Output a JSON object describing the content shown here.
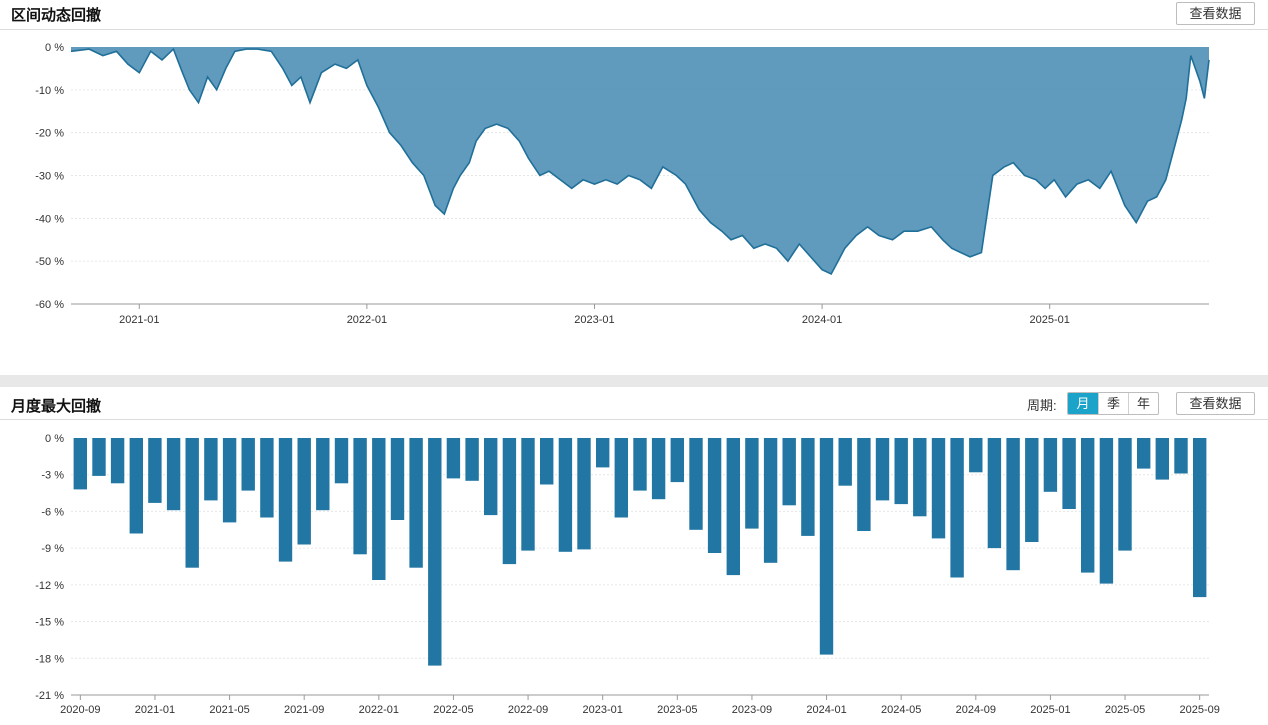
{
  "panel1": {
    "title": "区间动态回撤",
    "view_data_label": "查看数据"
  },
  "panel2": {
    "title": "月度最大回撤",
    "period_label": "周期:",
    "period_options": [
      "月",
      "季",
      "年"
    ],
    "active_period": "月",
    "view_data_label": "查看数据"
  },
  "colors": {
    "area_fill": "#4f90b6",
    "area_line": "#1f6f99",
    "bar": "#2176a3"
  },
  "chart_data": [
    {
      "type": "area",
      "title": "区间动态回撤",
      "ylim": [
        -60,
        0
      ],
      "y_ticks": [
        0,
        -10,
        -20,
        -30,
        -40,
        -50,
        -60
      ],
      "y_tick_labels": [
        "0 %",
        "-10 %",
        "-20 %",
        "-30 %",
        "-40 %",
        "-50 %",
        "-60 %"
      ],
      "x_tick_labels": [
        "2021-01",
        "2022-01",
        "2023-01",
        "2024-01",
        "2025-01"
      ],
      "x_tick_times": [
        2021.0,
        2022.0,
        2023.0,
        2024.0,
        2025.0
      ],
      "xlim": [
        2020.7,
        2025.7
      ],
      "series": [
        {
          "name": "回撤",
          "t": [
            2020.7,
            2020.78,
            2020.84,
            2020.9,
            2020.95,
            2021.0,
            2021.05,
            2021.1,
            2021.15,
            2021.19,
            2021.22,
            2021.26,
            2021.3,
            2021.34,
            2021.38,
            2021.42,
            2021.47,
            2021.52,
            2021.58,
            2021.63,
            2021.67,
            2021.71,
            2021.75,
            2021.8,
            2021.86,
            2021.91,
            2021.96,
            2022.0,
            2022.05,
            2022.1,
            2022.15,
            2022.2,
            2022.25,
            2022.3,
            2022.34,
            2022.38,
            2022.41,
            2022.45,
            2022.48,
            2022.52,
            2022.57,
            2022.62,
            2022.67,
            2022.71,
            2022.76,
            2022.8,
            2022.85,
            2022.9,
            2022.95,
            2023.0,
            2023.05,
            2023.1,
            2023.15,
            2023.2,
            2023.25,
            2023.3,
            2023.36,
            2023.4,
            2023.46,
            2023.51,
            2023.56,
            2023.6,
            2023.65,
            2023.7,
            2023.75,
            2023.8,
            2023.85,
            2023.9,
            2023.95,
            2024.0,
            2024.04,
            2024.07,
            2024.1,
            2024.15,
            2024.2,
            2024.25,
            2024.31,
            2024.36,
            2024.42,
            2024.48,
            2024.53,
            2024.57,
            2024.61,
            2024.65,
            2024.7,
            2024.75,
            2024.8,
            2024.84,
            2024.89,
            2024.94,
            2024.98,
            2025.02,
            2025.07,
            2025.12,
            2025.17,
            2025.22,
            2025.27,
            2025.33,
            2025.38,
            2025.43,
            2025.47,
            2025.51,
            2025.55,
            2025.58,
            2025.6,
            2025.62,
            2025.64,
            2025.66,
            2025.68,
            2025.7
          ],
          "values": [
            -1,
            -0.5,
            -2,
            -1,
            -4,
            -6,
            -1,
            -3,
            -0.5,
            -6,
            -10,
            -13,
            -7,
            -10,
            -5,
            -1,
            -0.5,
            -0.5,
            -1,
            -5,
            -9,
            -7,
            -13,
            -6,
            -4,
            -5,
            -3,
            -9,
            -14,
            -20,
            -23,
            -27,
            -30,
            -37,
            -39,
            -33,
            -30,
            -27,
            -22,
            -19,
            -18,
            -19,
            -22,
            -26,
            -30,
            -29,
            -31,
            -33,
            -31,
            -32,
            -31,
            -32,
            -30,
            -31,
            -33,
            -28,
            -30,
            -32,
            -38,
            -41,
            -43,
            -45,
            -44,
            -47,
            -46,
            -47,
            -50,
            -46,
            -49,
            -52,
            -53,
            -50,
            -47,
            -44,
            -42,
            -44,
            -45,
            -43,
            -43,
            -42,
            -45,
            -47,
            -48,
            -49,
            -48,
            -30,
            -28,
            -27,
            -30,
            -31,
            -33,
            -31,
            -35,
            -32,
            -31,
            -33,
            -29,
            -37,
            -41,
            -36,
            -35,
            -31,
            -23,
            -17,
            -12,
            -2,
            -5,
            -8,
            -12,
            -3
          ]
        }
      ]
    },
    {
      "type": "bar",
      "title": "月度最大回撤",
      "ylim": [
        -21,
        0
      ],
      "y_ticks": [
        0,
        -3,
        -6,
        -9,
        -12,
        -15,
        -18,
        -21
      ],
      "y_tick_labels": [
        "0 %",
        "-3 %",
        "-6 %",
        "-9 %",
        "-12 %",
        "-15 %",
        "-18 %",
        "-21 %"
      ],
      "x_tick_labels": [
        "2020-09",
        "2021-01",
        "2021-05",
        "2021-09",
        "2022-01",
        "2022-05",
        "2022-09",
        "2023-01",
        "2023-05",
        "2023-09",
        "2024-01",
        "2024-05",
        "2024-09",
        "2025-01",
        "2025-05",
        "2025-09"
      ],
      "x_tick_index": [
        0,
        4,
        8,
        12,
        16,
        20,
        24,
        28,
        32,
        36,
        40,
        44,
        48,
        52,
        56,
        60
      ],
      "categories": [
        "2020-09",
        "2020-10",
        "2020-11",
        "2020-12",
        "2021-01",
        "2021-02",
        "2021-03",
        "2021-04",
        "2021-05",
        "2021-06",
        "2021-07",
        "2021-08",
        "2021-09",
        "2021-10",
        "2021-11",
        "2021-12",
        "2022-01",
        "2022-02",
        "2022-03",
        "2022-04",
        "2022-05",
        "2022-06",
        "2022-07",
        "2022-08",
        "2022-09",
        "2022-10",
        "2022-11",
        "2022-12",
        "2023-01",
        "2023-02",
        "2023-03",
        "2023-04",
        "2023-05",
        "2023-06",
        "2023-07",
        "2023-08",
        "2023-09",
        "2023-10",
        "2023-11",
        "2023-12",
        "2024-01",
        "2024-02",
        "2024-03",
        "2024-04",
        "2024-05",
        "2024-06",
        "2024-07",
        "2024-08",
        "2024-09",
        "2024-10",
        "2024-11",
        "2024-12",
        "2025-01",
        "2025-02",
        "2025-03",
        "2025-04",
        "2025-05",
        "2025-06",
        "2025-07",
        "2025-08",
        "2025-09"
      ],
      "values": [
        -4.2,
        -3.1,
        -3.7,
        -7.8,
        -5.3,
        -5.9,
        -10.6,
        -5.1,
        -6.9,
        -4.3,
        -6.5,
        -10.1,
        -8.7,
        -5.9,
        -3.7,
        -9.5,
        -11.6,
        -6.7,
        -10.6,
        -18.6,
        -3.3,
        -3.5,
        -6.3,
        -10.3,
        -9.2,
        -3.8,
        -9.3,
        -9.1,
        -2.4,
        -6.5,
        -4.3,
        -5.0,
        -3.6,
        -7.5,
        -9.4,
        -11.2,
        -7.4,
        -10.2,
        -5.5,
        -8.0,
        -17.7,
        -3.9,
        -7.6,
        -5.1,
        -5.4,
        -6.4,
        -8.2,
        -11.4,
        -2.8,
        -9.0,
        -10.8,
        -8.5,
        -4.4,
        -5.8,
        -11.0,
        -11.9,
        -9.2,
        -2.5,
        -3.4,
        -2.9,
        -13.0
      ]
    }
  ]
}
